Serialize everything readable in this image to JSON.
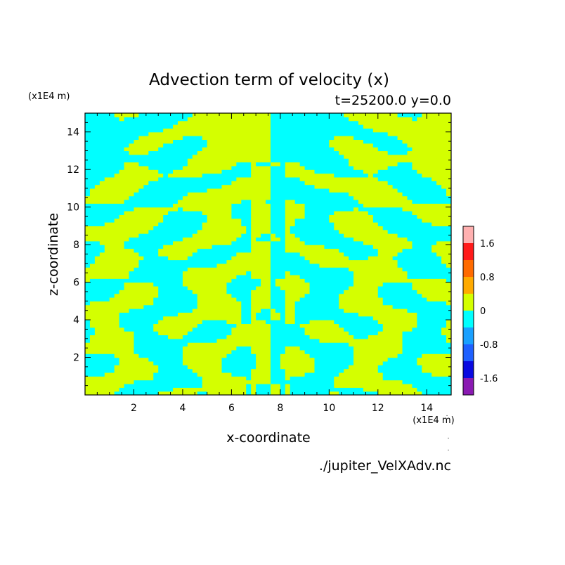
{
  "chart_data": {
    "type": "heatmap",
    "title": "Advection term of velocity (x)",
    "subtitle": "t=25200.0 y=0.0",
    "xlabel": "x-coordinate",
    "ylabel": "z-coordinate",
    "x_unit": "(x1E4 m)",
    "y_unit": "(x1E4 m)",
    "xlim": [
      0,
      15
    ],
    "ylim": [
      0,
      15
    ],
    "x_ticks": [
      2,
      4,
      6,
      8,
      10,
      12,
      14
    ],
    "y_ticks": [
      2,
      4,
      6,
      8,
      10,
      12,
      14
    ],
    "colorbar": {
      "levels": [
        -2.0,
        -1.6,
        -1.2,
        -0.8,
        -0.4,
        0,
        0.4,
        0.8,
        1.2,
        1.6,
        2.0
      ],
      "colors": [
        "#8a1ab2",
        "#0a0ae0",
        "#1f60ff",
        "#1aa0ff",
        "#00ffff",
        "#d4ff00",
        "#ffaa00",
        "#ff6a00",
        "#ff1a1a",
        "#ffb0b0"
      ],
      "tick_labels": [
        {
          "value": -1.6,
          "label": "-1.6"
        },
        {
          "value": -0.8,
          "label": "-0.8"
        },
        {
          "value": 0,
          "label": "0"
        },
        {
          "value": 0.8,
          "label": "0.8"
        },
        {
          "value": 1.6,
          "label": "1.6"
        }
      ]
    },
    "field": {
      "description_levels": [
        "negative (-0.4 to 0)",
        "positive (0 to 0.4)"
      ],
      "neg_color": "#00ffff",
      "pos_color": "#d4ff00",
      "symmetry": "mirror about x=7.5 with sign flip"
    },
    "footer": "./jupiter_VelXAdv.nc"
  }
}
